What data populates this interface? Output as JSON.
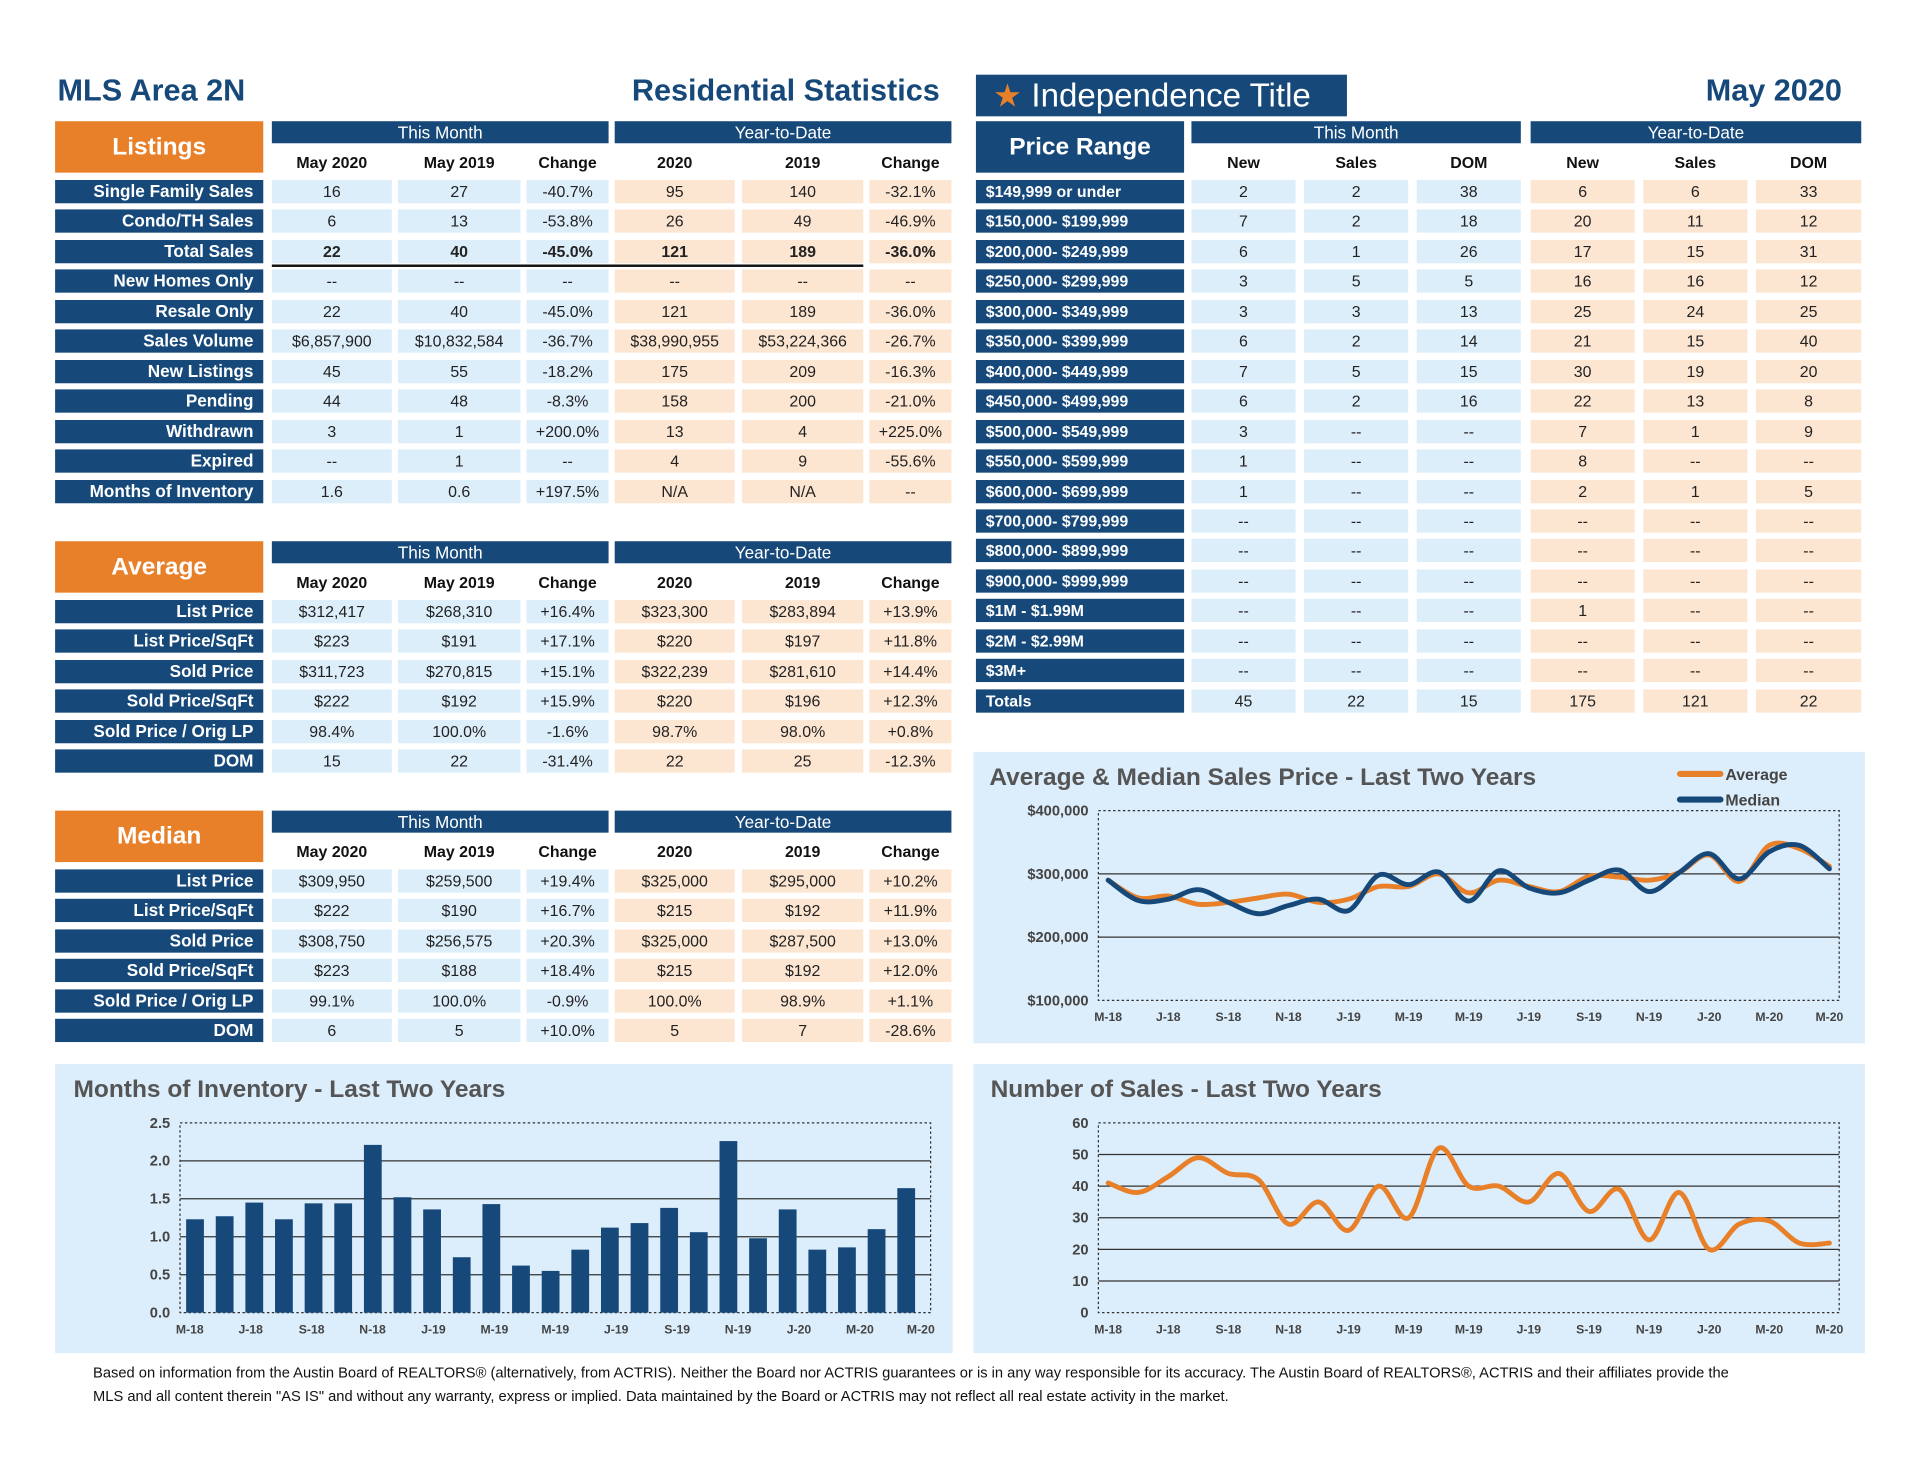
{
  "header": {
    "area": "MLS Area 2N",
    "title": "Residential Statistics",
    "logo": "Independence Title",
    "logo_icon": "star-icon",
    "date": "May 2020"
  },
  "colors": {
    "navy": "#16497a",
    "orange": "#e8802a",
    "this_month_fill": "#ddeefb",
    "ytd_fill": "#fce6d2"
  },
  "listings": {
    "label": "Listings",
    "this_month": "This Month",
    "ytd": "Year-to-Date",
    "cols": [
      "May 2020",
      "May 2019",
      "Change",
      "2020",
      "2019",
      "Change"
    ],
    "rows": [
      {
        "label": "Single Family Sales",
        "values": [
          "16",
          "27",
          "-40.7%",
          "95",
          "140",
          "-32.1%"
        ]
      },
      {
        "label": "Condo/TH Sales",
        "values": [
          "6",
          "13",
          "-53.8%",
          "26",
          "49",
          "-46.9%"
        ]
      },
      {
        "label": "Total Sales",
        "values": [
          "22",
          "40",
          "-45.0%",
          "121",
          "189",
          "-36.0%"
        ],
        "bold": true
      },
      {
        "label": "New Homes Only",
        "values": [
          "--",
          "--",
          "--",
          "--",
          "--",
          "--"
        ]
      },
      {
        "label": "Resale Only",
        "values": [
          "22",
          "40",
          "-45.0%",
          "121",
          "189",
          "-36.0%"
        ]
      },
      {
        "label": "Sales Volume",
        "values": [
          "$6,857,900",
          "$10,832,584",
          "-36.7%",
          "$38,990,955",
          "$53,224,366",
          "-26.7%"
        ]
      },
      {
        "label": "New Listings",
        "values": [
          "45",
          "55",
          "-18.2%",
          "175",
          "209",
          "-16.3%"
        ]
      },
      {
        "label": "Pending",
        "values": [
          "44",
          "48",
          "-8.3%",
          "158",
          "200",
          "-21.0%"
        ]
      },
      {
        "label": "Withdrawn",
        "values": [
          "3",
          "1",
          "+200.0%",
          "13",
          "4",
          "+225.0%"
        ]
      },
      {
        "label": "Expired",
        "values": [
          "--",
          "1",
          "--",
          "4",
          "9",
          "-55.6%"
        ]
      },
      {
        "label": "Months of Inventory",
        "values": [
          "1.6",
          "0.6",
          "+197.5%",
          "N/A",
          "N/A",
          "--"
        ]
      }
    ]
  },
  "average": {
    "label": "Average",
    "this_month": "This Month",
    "ytd": "Year-to-Date",
    "cols": [
      "May 2020",
      "May 2019",
      "Change",
      "2020",
      "2019",
      "Change"
    ],
    "rows": [
      {
        "label": "List Price",
        "values": [
          "$312,417",
          "$268,310",
          "+16.4%",
          "$323,300",
          "$283,894",
          "+13.9%"
        ]
      },
      {
        "label": "List Price/SqFt",
        "values": [
          "$223",
          "$191",
          "+17.1%",
          "$220",
          "$197",
          "+11.8%"
        ]
      },
      {
        "label": "Sold Price",
        "values": [
          "$311,723",
          "$270,815",
          "+15.1%",
          "$322,239",
          "$281,610",
          "+14.4%"
        ]
      },
      {
        "label": "Sold Price/SqFt",
        "values": [
          "$222",
          "$192",
          "+15.9%",
          "$220",
          "$196",
          "+12.3%"
        ]
      },
      {
        "label": "Sold Price / Orig LP",
        "values": [
          "98.4%",
          "100.0%",
          "-1.6%",
          "98.7%",
          "98.0%",
          "+0.8%"
        ]
      },
      {
        "label": "DOM",
        "values": [
          "15",
          "22",
          "-31.4%",
          "22",
          "25",
          "-12.3%"
        ]
      }
    ]
  },
  "median": {
    "label": "Median",
    "this_month": "This Month",
    "ytd": "Year-to-Date",
    "cols": [
      "May 2020",
      "May 2019",
      "Change",
      "2020",
      "2019",
      "Change"
    ],
    "rows": [
      {
        "label": "List Price",
        "values": [
          "$309,950",
          "$259,500",
          "+19.4%",
          "$325,000",
          "$295,000",
          "+10.2%"
        ]
      },
      {
        "label": "List Price/SqFt",
        "values": [
          "$222",
          "$190",
          "+16.7%",
          "$215",
          "$192",
          "+11.9%"
        ]
      },
      {
        "label": "Sold Price",
        "values": [
          "$308,750",
          "$256,575",
          "+20.3%",
          "$325,000",
          "$287,500",
          "+13.0%"
        ]
      },
      {
        "label": "Sold Price/SqFt",
        "values": [
          "$223",
          "$188",
          "+18.4%",
          "$215",
          "$192",
          "+12.0%"
        ]
      },
      {
        "label": "Sold Price / Orig LP",
        "values": [
          "99.1%",
          "100.0%",
          "-0.9%",
          "100.0%",
          "98.9%",
          "+1.1%"
        ]
      },
      {
        "label": "DOM",
        "values": [
          "6",
          "5",
          "+10.0%",
          "5",
          "7",
          "-28.6%"
        ]
      }
    ]
  },
  "price_range": {
    "label": "Price Range",
    "this_month": "This Month",
    "ytd": "Year-to-Date",
    "cols": [
      "New",
      "Sales",
      "DOM",
      "New",
      "Sales",
      "DOM"
    ],
    "rows": [
      {
        "label": "$149,999 or under",
        "values": [
          "2",
          "2",
          "38",
          "6",
          "6",
          "33"
        ]
      },
      {
        "label": "$150,000- $199,999",
        "values": [
          "7",
          "2",
          "18",
          "20",
          "11",
          "12"
        ]
      },
      {
        "label": "$200,000- $249,999",
        "values": [
          "6",
          "1",
          "26",
          "17",
          "15",
          "31"
        ]
      },
      {
        "label": "$250,000- $299,999",
        "values": [
          "3",
          "5",
          "5",
          "16",
          "16",
          "12"
        ]
      },
      {
        "label": "$300,000- $349,999",
        "values": [
          "3",
          "3",
          "13",
          "25",
          "24",
          "25"
        ]
      },
      {
        "label": "$350,000- $399,999",
        "values": [
          "6",
          "2",
          "14",
          "21",
          "15",
          "40"
        ]
      },
      {
        "label": "$400,000- $449,999",
        "values": [
          "7",
          "5",
          "15",
          "30",
          "19",
          "20"
        ]
      },
      {
        "label": "$450,000- $499,999",
        "values": [
          "6",
          "2",
          "16",
          "22",
          "13",
          "8"
        ]
      },
      {
        "label": "$500,000- $549,999",
        "values": [
          "3",
          "--",
          "--",
          "7",
          "1",
          "9"
        ]
      },
      {
        "label": "$550,000- $599,999",
        "values": [
          "1",
          "--",
          "--",
          "8",
          "--",
          "--"
        ]
      },
      {
        "label": "$600,000- $699,999",
        "values": [
          "1",
          "--",
          "--",
          "2",
          "1",
          "5"
        ]
      },
      {
        "label": "$700,000- $799,999",
        "values": [
          "--",
          "--",
          "--",
          "--",
          "--",
          "--"
        ]
      },
      {
        "label": "$800,000- $899,999",
        "values": [
          "--",
          "--",
          "--",
          "--",
          "--",
          "--"
        ]
      },
      {
        "label": "$900,000- $999,999",
        "values": [
          "--",
          "--",
          "--",
          "--",
          "--",
          "--"
        ]
      },
      {
        "label": "$1M - $1.99M",
        "values": [
          "--",
          "--",
          "--",
          "1",
          "--",
          "--"
        ]
      },
      {
        "label": "$2M - $2.99M",
        "values": [
          "--",
          "--",
          "--",
          "--",
          "--",
          "--"
        ]
      },
      {
        "label": "$3M+",
        "values": [
          "--",
          "--",
          "--",
          "--",
          "--",
          "--"
        ]
      },
      {
        "label": "Totals",
        "values": [
          "45",
          "22",
          "15",
          "175",
          "121",
          "22"
        ],
        "totals": true
      }
    ]
  },
  "chart_data": [
    {
      "id": "inventory",
      "type": "bar",
      "title": "Months of Inventory - Last Two Years",
      "ylim": [
        0,
        2.5
      ],
      "yticks": [
        "0.0",
        "0.5",
        "1.0",
        "1.5",
        "2.0",
        "2.5"
      ],
      "xticks": [
        "M-18",
        "J-18",
        "S-18",
        "N-18",
        "J-19",
        "M-19",
        "M-19",
        "J-19",
        "S-19",
        "N-19",
        "J-20",
        "M-20",
        "M-20"
      ],
      "values": [
        1.23,
        1.27,
        1.45,
        1.23,
        1.44,
        1.44,
        2.21,
        1.52,
        1.36,
        0.73,
        1.43,
        0.62,
        0.55,
        0.83,
        1.12,
        1.18,
        1.38,
        1.06,
        2.26,
        0.98,
        1.36,
        0.83,
        0.86,
        1.1,
        1.64
      ]
    },
    {
      "id": "price",
      "type": "line",
      "title": "Average & Median Sales Price - Last Two Years",
      "ylim": [
        100000,
        400000
      ],
      "yticks": [
        "$100,000",
        "$200,000",
        "$300,000",
        "$400,000"
      ],
      "xticks": [
        "M-18",
        "J-18",
        "S-18",
        "N-18",
        "J-19",
        "M-19",
        "M-19",
        "J-19",
        "S-19",
        "N-19",
        "J-20",
        "M-20",
        "M-20"
      ],
      "series": [
        {
          "name": "Average",
          "color": "#e8802a",
          "values": [
            290000,
            262000,
            265000,
            252000,
            255000,
            262000,
            268000,
            255000,
            260000,
            280000,
            280000,
            300000,
            270000,
            290000,
            280000,
            272000,
            296000,
            295000,
            290000,
            302000,
            330000,
            288000,
            345000,
            340000,
            312000
          ]
        },
        {
          "name": "Median",
          "color": "#16497a",
          "values": [
            290000,
            258000,
            260000,
            275000,
            255000,
            237000,
            250000,
            260000,
            242000,
            298000,
            283000,
            303000,
            257000,
            305000,
            278000,
            270000,
            290000,
            306000,
            272000,
            302000,
            332000,
            292000,
            335000,
            345000,
            308000
          ]
        }
      ]
    },
    {
      "id": "sales",
      "type": "line",
      "title": "Number of Sales - Last Two Years",
      "ylim": [
        0,
        60
      ],
      "yticks": [
        "0",
        "10",
        "20",
        "30",
        "40",
        "50",
        "60"
      ],
      "xticks": [
        "M-18",
        "J-18",
        "S-18",
        "N-18",
        "J-19",
        "M-19",
        "M-19",
        "J-19",
        "S-19",
        "N-19",
        "J-20",
        "M-20",
        "M-20"
      ],
      "series": [
        {
          "name": "Sales",
          "color": "#e8802a",
          "values": [
            41,
            38,
            43,
            49,
            44,
            42,
            28,
            35,
            26,
            40,
            30,
            52,
            40,
            40,
            35,
            44,
            32,
            39,
            23,
            38,
            20,
            28,
            29,
            22,
            22
          ]
        }
      ]
    }
  ],
  "footer": {
    "line1": "Based on information from the Austin Board of REALTORS® (alternatively, from ACTRIS). Neither the Board nor ACTRIS guarantees or is in any way responsible for its accuracy. The Austin Board of REALTORS®, ACTRIS and their affiliates provide the",
    "line2": "MLS and all content therein \"AS IS\" and without any warranty, express or implied. Data maintained by the Board or ACTRIS may not reflect all real estate activity in the market."
  }
}
